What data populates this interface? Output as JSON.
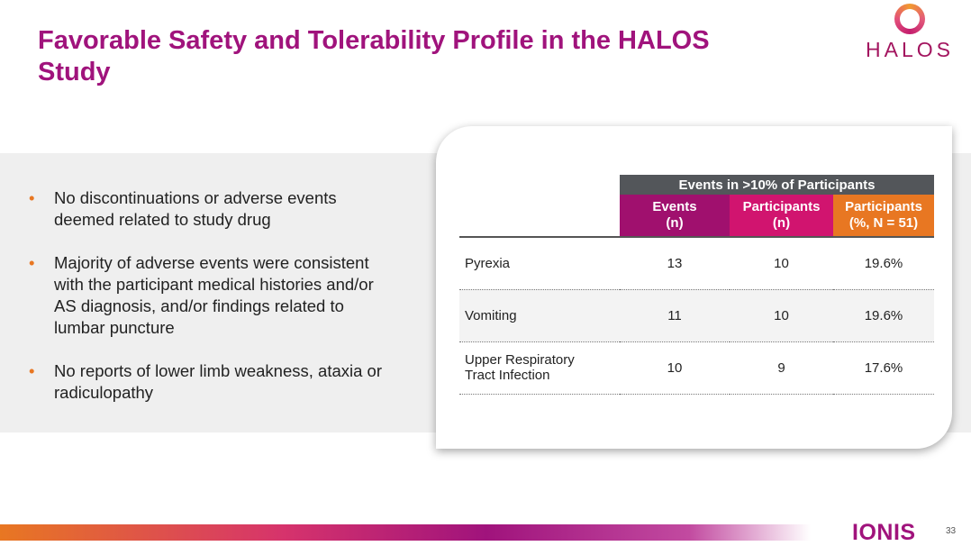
{
  "title": "Favorable Safety and Tolerability Profile in the HALOS Study",
  "logo": {
    "text": "HALOS"
  },
  "bullets": [
    "No discontinuations or adverse events deemed related to study drug",
    "Majority of adverse events were consistent with the participant medical histories and/or AS diagnosis, and/or findings related to lumbar puncture",
    "No reports of lower limb weakness, ataxia or radiculopathy"
  ],
  "table": {
    "group_header": "Events in >10% of Participants",
    "columns": [
      {
        "line1": "Events",
        "line2": "(n)"
      },
      {
        "line1": "Participants",
        "line2": "(n)"
      },
      {
        "line1": "Participants",
        "line2": "(%, N = 51)"
      }
    ],
    "rows": [
      {
        "label": "Pyrexia",
        "events": "13",
        "participants": "10",
        "percent": "19.6%"
      },
      {
        "label": "Vomiting",
        "events": "11",
        "participants": "10",
        "percent": "19.6%"
      },
      {
        "label": "Upper Respiratory Tract Infection",
        "events": "10",
        "participants": "9",
        "percent": "17.6%"
      }
    ]
  },
  "colors": {
    "col1": "#a0106e",
    "col2": "#d1146f",
    "col3": "#e87722",
    "title": "#a0137c"
  },
  "footer": {
    "brand": "IONIS",
    "page": "33"
  }
}
